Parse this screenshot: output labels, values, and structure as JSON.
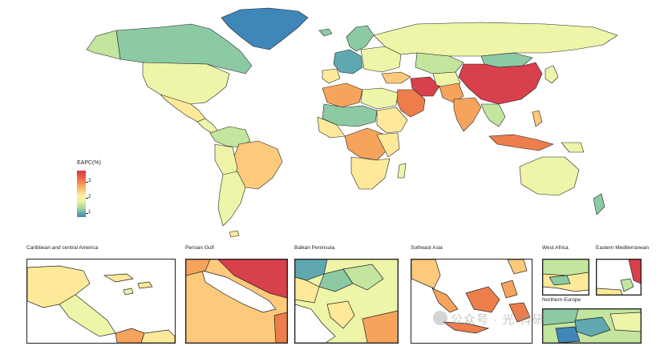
{
  "legend": {
    "title": "EAPC(%)",
    "ticks": [
      "3",
      "2",
      "1"
    ]
  },
  "colors": {
    "blue": "#3f86b9",
    "teal": "#5fa8b0",
    "green": "#8ccaa4",
    "lightgreen": "#c3e59e",
    "paleyellow": "#eef5a8",
    "yellow": "#fde999",
    "lightorange": "#fdc97a",
    "orange": "#f6a35c",
    "darkorange": "#ee7d4c",
    "red": "#d8404c",
    "border": "#222222"
  },
  "insets": [
    {
      "id": "caribbean",
      "title": "Caribbean and central America"
    },
    {
      "id": "persian",
      "title": "Persian Gulf"
    },
    {
      "id": "balkan",
      "title": "Balkan Peninsula"
    },
    {
      "id": "seasia",
      "title": "Sotheast Asia"
    },
    {
      "id": "westafrica",
      "title": "West Africa"
    },
    {
      "id": "eastmed",
      "title": "Eastern Mediterranean"
    },
    {
      "id": "northeurope",
      "title": "Northern Europe"
    }
  ],
  "watermark": "公众号 · 光 科研"
}
